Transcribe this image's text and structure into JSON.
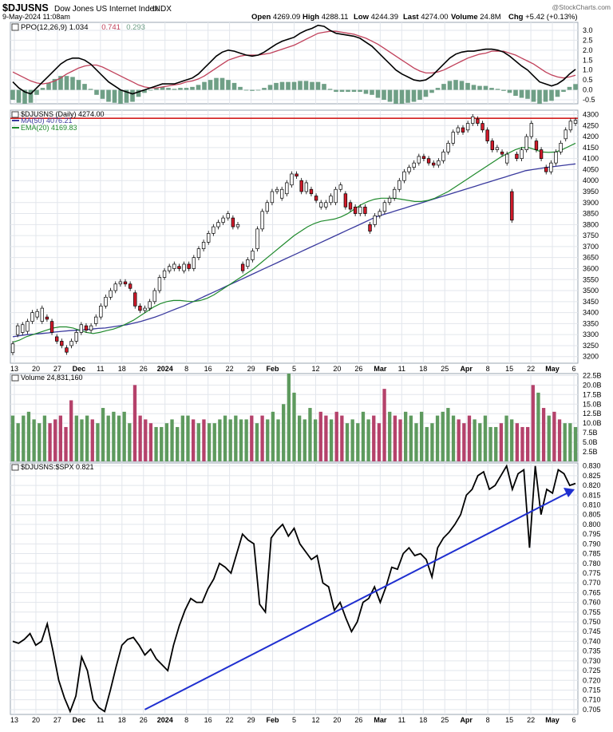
{
  "header": {
    "symbol": "$DJUSNS",
    "name": "Dow Jones US Internet Index",
    "exchange": "INDX",
    "timestamp": "9-May-2024 11:08am",
    "watermark": "@StockCharts.com",
    "quote": [
      {
        "label": "Open",
        "value": "4269.09"
      },
      {
        "label": "High",
        "value": "4288.11"
      },
      {
        "label": "Low",
        "value": "4244.39"
      },
      {
        "label": "Last",
        "value": "4274.00"
      },
      {
        "label": "Volume",
        "value": "24.8M"
      },
      {
        "label": "Chg",
        "value": "+5.42 (+0.13%)"
      }
    ]
  },
  "colors": {
    "up": "#ffffff",
    "down": "#d11a2a",
    "vol_up": "#5e9a5e",
    "vol_down": "#b5426b",
    "ma50": "#3a3a9e",
    "ema20": "#1f8a2c",
    "resistance": "#d21e1e",
    "ppo": "#000000",
    "signal": "#c0405a",
    "hist": "#6f9f86",
    "ratio": "#000000",
    "trend": "#1f2fd0",
    "grid": "#e2e6ec",
    "panel_border": "#9aa4b0"
  },
  "chart_data": [
    {
      "type": "line",
      "title": "PPO(12,26,9)",
      "legend": [
        {
          "label": "PPO(12,26,9) 1.034",
          "color": "#000000"
        },
        {
          "label": "0.741",
          "color": "#c0405a"
        },
        {
          "label": "0.293",
          "color": "#6f9f86"
        }
      ],
      "yticks": [
        "3.0",
        "2.5",
        "2.0",
        "1.5",
        "1.0",
        "0.5",
        "0.0",
        "-0.5"
      ],
      "ylim": [
        -0.7,
        3.4
      ],
      "ppo": [
        0.4,
        0.1,
        -0.1,
        -0.2,
        0.1,
        0.4,
        0.7,
        1.0,
        1.3,
        1.5,
        1.6,
        1.6,
        1.5,
        1.3,
        1.0,
        0.7,
        0.4,
        0.2,
        0.0,
        -0.1,
        -0.2,
        -0.1,
        0.0,
        0.1,
        0.2,
        0.3,
        0.3,
        0.3,
        0.4,
        0.5,
        0.6,
        0.8,
        1.1,
        1.4,
        1.7,
        1.9,
        2.0,
        1.95,
        1.85,
        1.75,
        1.7,
        1.75,
        1.9,
        2.1,
        2.3,
        2.45,
        2.55,
        2.65,
        2.85,
        3.0,
        3.1,
        3.25,
        3.2,
        3.0,
        2.85,
        2.8,
        2.75,
        2.7,
        2.6,
        2.4,
        2.2,
        1.9,
        1.6,
        1.3,
        1.0,
        0.8,
        0.65,
        0.5,
        0.45,
        0.5,
        0.7,
        1.0,
        1.3,
        1.6,
        1.8,
        1.9,
        1.95,
        1.95,
        2.0,
        2.05,
        2.05,
        2.0,
        1.9,
        1.7,
        1.45,
        1.2,
        1.0,
        0.7,
        0.4,
        0.3,
        0.2,
        0.3,
        0.5,
        0.8,
        1.034
      ],
      "signal": [
        0.9,
        0.75,
        0.6,
        0.45,
        0.35,
        0.3,
        0.35,
        0.45,
        0.6,
        0.8,
        0.95,
        1.1,
        1.2,
        1.25,
        1.25,
        1.15,
        1.0,
        0.85,
        0.7,
        0.55,
        0.4,
        0.25,
        0.15,
        0.1,
        0.1,
        0.15,
        0.2,
        0.25,
        0.3,
        0.4,
        0.45,
        0.55,
        0.7,
        0.9,
        1.1,
        1.3,
        1.5,
        1.6,
        1.7,
        1.75,
        1.75,
        1.75,
        1.8,
        1.85,
        1.95,
        2.05,
        2.15,
        2.25,
        2.4,
        2.55,
        2.7,
        2.85,
        2.9,
        2.95,
        2.95,
        2.9,
        2.85,
        2.8,
        2.7,
        2.6,
        2.45,
        2.3,
        2.1,
        1.9,
        1.7,
        1.5,
        1.3,
        1.1,
        0.95,
        0.85,
        0.85,
        0.9,
        1.0,
        1.15,
        1.3,
        1.45,
        1.6,
        1.7,
        1.8,
        1.85,
        1.95,
        1.95,
        1.95,
        1.85,
        1.75,
        1.6,
        1.45,
        1.3,
        1.1,
        0.9,
        0.75,
        0.65,
        0.6,
        0.65,
        0.741
      ]
    },
    {
      "type": "candlestick",
      "title": "$DJUSNS (Daily) 4274.00",
      "legend": [
        {
          "label": "MA(50) 4076.21",
          "color": "#3a3a9e"
        },
        {
          "label": "EMA(20) 4169.83",
          "color": "#1f8a2c"
        }
      ],
      "yticks": [
        "4300",
        "4250",
        "4200",
        "4150",
        "4100",
        "4050",
        "4000",
        "3950",
        "3900",
        "3850",
        "3800",
        "3750",
        "3700",
        "3650",
        "3600",
        "3550",
        "3500",
        "3450",
        "3400",
        "3350",
        "3300",
        "3250",
        "3200"
      ],
      "ylim": [
        3170,
        4320
      ],
      "resistance": 4283,
      "xticks": [
        "13",
        "20",
        "27",
        "Dec",
        "11",
        "18",
        "26",
        "2024",
        "8",
        "16",
        "22",
        "29",
        "Feb",
        "5",
        "12",
        "20",
        "26",
        "Mar",
        "11",
        "18",
        "25",
        "Apr",
        "8",
        "15",
        "22",
        "May",
        "6"
      ],
      "candles": [
        [
          3218,
          3258
        ],
        [
          3300,
          3340
        ],
        [
          3310,
          3345
        ],
        [
          3315,
          3360
        ],
        [
          3360,
          3400
        ],
        [
          3380,
          3405
        ],
        [
          3360,
          3420
        ],
        [
          3380,
          3370
        ],
        [
          3360,
          3310
        ],
        [
          3290,
          3270
        ],
        [
          3270,
          3250
        ],
        [
          3240,
          3220
        ],
        [
          3250,
          3270
        ],
        [
          3270,
          3310
        ],
        [
          3310,
          3345
        ],
        [
          3340,
          3320
        ],
        [
          3320,
          3340
        ],
        [
          3350,
          3380
        ],
        [
          3380,
          3430
        ],
        [
          3430,
          3470
        ],
        [
          3470,
          3500
        ],
        [
          3500,
          3530
        ],
        [
          3530,
          3540
        ],
        [
          3540,
          3530
        ],
        [
          3530,
          3510
        ],
        [
          3490,
          3430
        ],
        [
          3430,
          3410
        ],
        [
          3410,
          3420
        ],
        [
          3420,
          3450
        ],
        [
          3450,
          3500
        ],
        [
          3500,
          3560
        ],
        [
          3560,
          3590
        ],
        [
          3590,
          3610
        ],
        [
          3600,
          3620
        ],
        [
          3610,
          3600
        ],
        [
          3590,
          3620
        ],
        [
          3620,
          3600
        ],
        [
          3600,
          3650
        ],
        [
          3650,
          3690
        ],
        [
          3690,
          3720
        ],
        [
          3720,
          3760
        ],
        [
          3760,
          3790
        ],
        [
          3790,
          3810
        ],
        [
          3810,
          3830
        ],
        [
          3830,
          3850
        ],
        [
          3830,
          3790
        ],
        [
          3790,
          3800
        ],
        [
          3620,
          3590
        ],
        [
          3610,
          3640
        ],
        [
          3640,
          3680
        ],
        [
          3690,
          3780
        ],
        [
          3780,
          3860
        ],
        [
          3860,
          3900
        ],
        [
          3900,
          3950
        ],
        [
          3950,
          3960
        ],
        [
          3920,
          3960
        ],
        [
          3940,
          3990
        ],
        [
          3980,
          4030
        ],
        [
          4030,
          4020
        ],
        [
          4000,
          3950
        ],
        [
          3950,
          3990
        ],
        [
          3960,
          3940
        ],
        [
          3930,
          3910
        ],
        [
          3880,
          3900
        ],
        [
          3880,
          3900
        ],
        [
          3900,
          3930
        ],
        [
          3900,
          3960
        ],
        [
          3960,
          3980
        ],
        [
          3940,
          3880
        ],
        [
          3900,
          3870
        ],
        [
          3880,
          3850
        ],
        [
          3850,
          3880
        ],
        [
          3880,
          3850
        ],
        [
          3800,
          3770
        ],
        [
          3800,
          3840
        ],
        [
          3840,
          3860
        ],
        [
          3860,
          3900
        ],
        [
          3900,
          3920
        ],
        [
          3920,
          3960
        ],
        [
          3960,
          4000
        ],
        [
          4000,
          4040
        ],
        [
          4040,
          4060
        ],
        [
          4060,
          4080
        ],
        [
          4080,
          4110
        ],
        [
          4110,
          4100
        ],
        [
          4100,
          4080
        ],
        [
          4080,
          4070
        ],
        [
          4070,
          4090
        ],
        [
          4090,
          4130
        ],
        [
          4130,
          4170
        ],
        [
          4170,
          4220
        ],
        [
          4220,
          4240
        ],
        [
          4240,
          4220
        ],
        [
          4230,
          4260
        ],
        [
          4260,
          4290
        ],
        [
          4280,
          4260
        ],
        [
          4260,
          4230
        ],
        [
          4230,
          4180
        ],
        [
          4180,
          4140
        ],
        [
          4140,
          4150
        ],
        [
          4130,
          4120
        ],
        [
          4080,
          4120
        ],
        [
          3950,
          3820
        ],
        [
          4120,
          4100
        ],
        [
          4100,
          4140
        ],
        [
          4140,
          4200
        ],
        [
          4200,
          4260
        ],
        [
          4180,
          4140
        ],
        [
          4140,
          4100
        ],
        [
          4060,
          4040
        ],
        [
          4040,
          4080
        ],
        [
          4080,
          4130
        ],
        [
          4130,
          4170
        ],
        [
          4190,
          4230
        ],
        [
          4230,
          4270
        ],
        [
          4260,
          4274
        ]
      ],
      "ma50": [
        3290,
        3295,
        3300,
        3302,
        3305,
        3308,
        3312,
        3315,
        3318,
        3320,
        3322,
        3325,
        3328,
        3330,
        3335,
        3340,
        3345,
        3352,
        3360,
        3370,
        3380,
        3392,
        3405,
        3418,
        3430,
        3445,
        3460,
        3475,
        3490,
        3505,
        3520,
        3535,
        3550,
        3565,
        3580,
        3595,
        3610,
        3625,
        3640,
        3655,
        3670,
        3685,
        3700,
        3715,
        3730,
        3745,
        3760,
        3775,
        3790,
        3805,
        3820,
        3835,
        3845,
        3855,
        3865,
        3875,
        3885,
        3895,
        3905,
        3915,
        3925,
        3935,
        3945,
        3955,
        3965,
        3975,
        3985,
        3995,
        4005,
        4015,
        4025,
        4035,
        4045,
        4050,
        4055,
        4060,
        4064,
        4068,
        4072,
        4076
      ],
      "ema20": [
        3265,
        3275,
        3290,
        3300,
        3310,
        3320,
        3330,
        3335,
        3335,
        3330,
        3320,
        3310,
        3305,
        3310,
        3318,
        3325,
        3335,
        3350,
        3365,
        3385,
        3405,
        3425,
        3440,
        3450,
        3455,
        3455,
        3452,
        3450,
        3455,
        3465,
        3480,
        3500,
        3520,
        3540,
        3560,
        3580,
        3600,
        3625,
        3650,
        3675,
        3700,
        3725,
        3750,
        3770,
        3790,
        3805,
        3815,
        3820,
        3825,
        3835,
        3850,
        3870,
        3890,
        3905,
        3915,
        3920,
        3920,
        3920,
        3915,
        3910,
        3905,
        3905,
        3910,
        3920,
        3935,
        3950,
        3970,
        3990,
        4010,
        4030,
        4050,
        4070,
        4090,
        4110,
        4125,
        4140,
        4150,
        4150,
        4140,
        4130,
        4128,
        4130,
        4140,
        4155,
        4169.83
      ]
    },
    {
      "type": "bar",
      "title": "Volume 24,831,160",
      "yticks": [
        "22.5B",
        "20.0B",
        "17.5B",
        "15.0B",
        "12.5B",
        "10.0B",
        "7.5B",
        "5.0B",
        "2.5B"
      ],
      "ylim": [
        0,
        23
      ],
      "unit": "B",
      "values": [
        12,
        10,
        12,
        13,
        11,
        10,
        12,
        10,
        11,
        12,
        9,
        16,
        12,
        11,
        12,
        11,
        10,
        14,
        12,
        13,
        12,
        13,
        10,
        20,
        12,
        11,
        10,
        9,
        9,
        10,
        11,
        9,
        12,
        12,
        11,
        10,
        11,
        10,
        10,
        11,
        12,
        11,
        12,
        11,
        11,
        12,
        10,
        12,
        11,
        13,
        11,
        15,
        23,
        18,
        12,
        11,
        14,
        11,
        13,
        12,
        11,
        13,
        12,
        10,
        11,
        10,
        13,
        11,
        12,
        10,
        19,
        13,
        12,
        11,
        13,
        12,
        10,
        13,
        9,
        10,
        12,
        13,
        14,
        12,
        11,
        10,
        12,
        11,
        10,
        12,
        9,
        9,
        10,
        12,
        11,
        10,
        9,
        9,
        20,
        18,
        14,
        12,
        13,
        11,
        10,
        10,
        9
      ]
    },
    {
      "type": "line",
      "title": "$DJUSNS:$SPX 0.821",
      "yticks": [
        "0.830",
        "0.825",
        "0.820",
        "0.815",
        "0.810",
        "0.805",
        "0.800",
        "0.795",
        "0.790",
        "0.785",
        "0.780",
        "0.775",
        "0.770",
        "0.765",
        "0.760",
        "0.755",
        "0.750",
        "0.745",
        "0.740",
        "0.735",
        "0.730",
        "0.725",
        "0.720",
        "0.715",
        "0.710",
        "0.705"
      ],
      "ylim": [
        0.7025,
        0.8315
      ],
      "values": [
        0.74,
        0.739,
        0.741,
        0.744,
        0.738,
        0.74,
        0.749,
        0.735,
        0.72,
        0.711,
        0.704,
        0.712,
        0.732,
        0.725,
        0.71,
        0.706,
        0.704,
        0.715,
        0.727,
        0.738,
        0.741,
        0.742,
        0.738,
        0.733,
        0.736,
        0.731,
        0.728,
        0.725,
        0.738,
        0.748,
        0.756,
        0.762,
        0.76,
        0.76,
        0.767,
        0.772,
        0.78,
        0.778,
        0.775,
        0.785,
        0.795,
        0.792,
        0.79,
        0.759,
        0.755,
        0.793,
        0.797,
        0.8,
        0.794,
        0.798,
        0.79,
        0.786,
        0.782,
        0.784,
        0.77,
        0.768,
        0.756,
        0.76,
        0.752,
        0.745,
        0.75,
        0.76,
        0.762,
        0.768,
        0.76,
        0.768,
        0.778,
        0.777,
        0.785,
        0.788,
        0.784,
        0.785,
        0.782,
        0.773,
        0.788,
        0.793,
        0.796,
        0.8,
        0.805,
        0.815,
        0.818,
        0.825,
        0.827,
        0.818,
        0.82,
        0.825,
        0.83,
        0.818,
        0.826,
        0.828,
        0.788,
        0.83,
        0.805,
        0.818,
        0.816,
        0.828,
        0.826,
        0.82,
        0.821
      ],
      "trend_line": [
        [
          0,
          0.705
        ],
        [
          1,
          0.818
        ]
      ]
    }
  ]
}
